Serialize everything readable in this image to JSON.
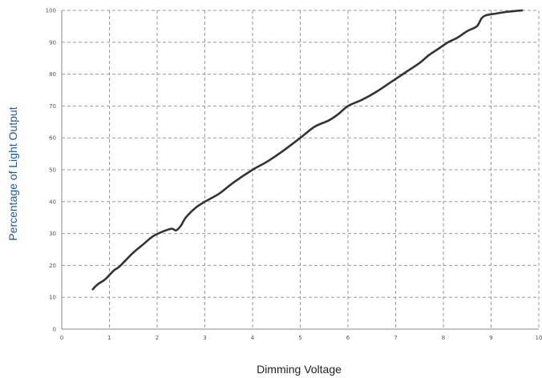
{
  "chart_data": {
    "type": "line",
    "title": "",
    "xlabel": "Dimming Voltage",
    "ylabel": "Percentage of Light Output",
    "xlim": [
      0,
      10
    ],
    "ylim": [
      0,
      100
    ],
    "x_ticks": [
      0,
      1,
      2,
      3,
      4,
      5,
      6,
      7,
      8,
      9,
      10
    ],
    "y_ticks": [
      0,
      10,
      20,
      30,
      40,
      50,
      60,
      70,
      80,
      90,
      100
    ],
    "grid": true,
    "grid_style": "dashed",
    "legend": false,
    "colors": {
      "line": "#333333",
      "grid": "#9a9a9a",
      "axis": "#8a8a8a",
      "tick_label": "#555555",
      "axis_title": "#1f5a9a"
    },
    "series": [
      {
        "x": [
          0.65,
          0.75,
          0.9,
          1.0,
          1.1,
          1.2,
          1.3,
          1.5,
          1.7,
          1.9,
          2.1,
          2.3,
          2.4,
          2.5,
          2.6,
          2.8,
          3.0,
          3.3,
          3.6,
          4.0,
          4.3,
          4.6,
          5.0,
          5.3,
          5.6,
          5.8,
          6.0,
          6.3,
          6.6,
          6.9,
          7.2,
          7.5,
          7.7,
          7.9,
          8.1,
          8.3,
          8.5,
          8.7,
          8.8,
          8.9,
          9.1,
          9.3,
          9.5,
          9.65
        ],
        "y": [
          12.5,
          14,
          15.5,
          17,
          18.5,
          19.5,
          21,
          24,
          26.5,
          29,
          30.5,
          31.5,
          31,
          32.5,
          35,
          38,
          40,
          42.5,
          46,
          50,
          52.5,
          55.5,
          60,
          63.5,
          65.5,
          67.5,
          70,
          72,
          74.5,
          77.5,
          80.5,
          83.5,
          86,
          88,
          90,
          91.5,
          93.5,
          95,
          97.5,
          98.5,
          99,
          99.5,
          99.8,
          100
        ]
      }
    ]
  }
}
